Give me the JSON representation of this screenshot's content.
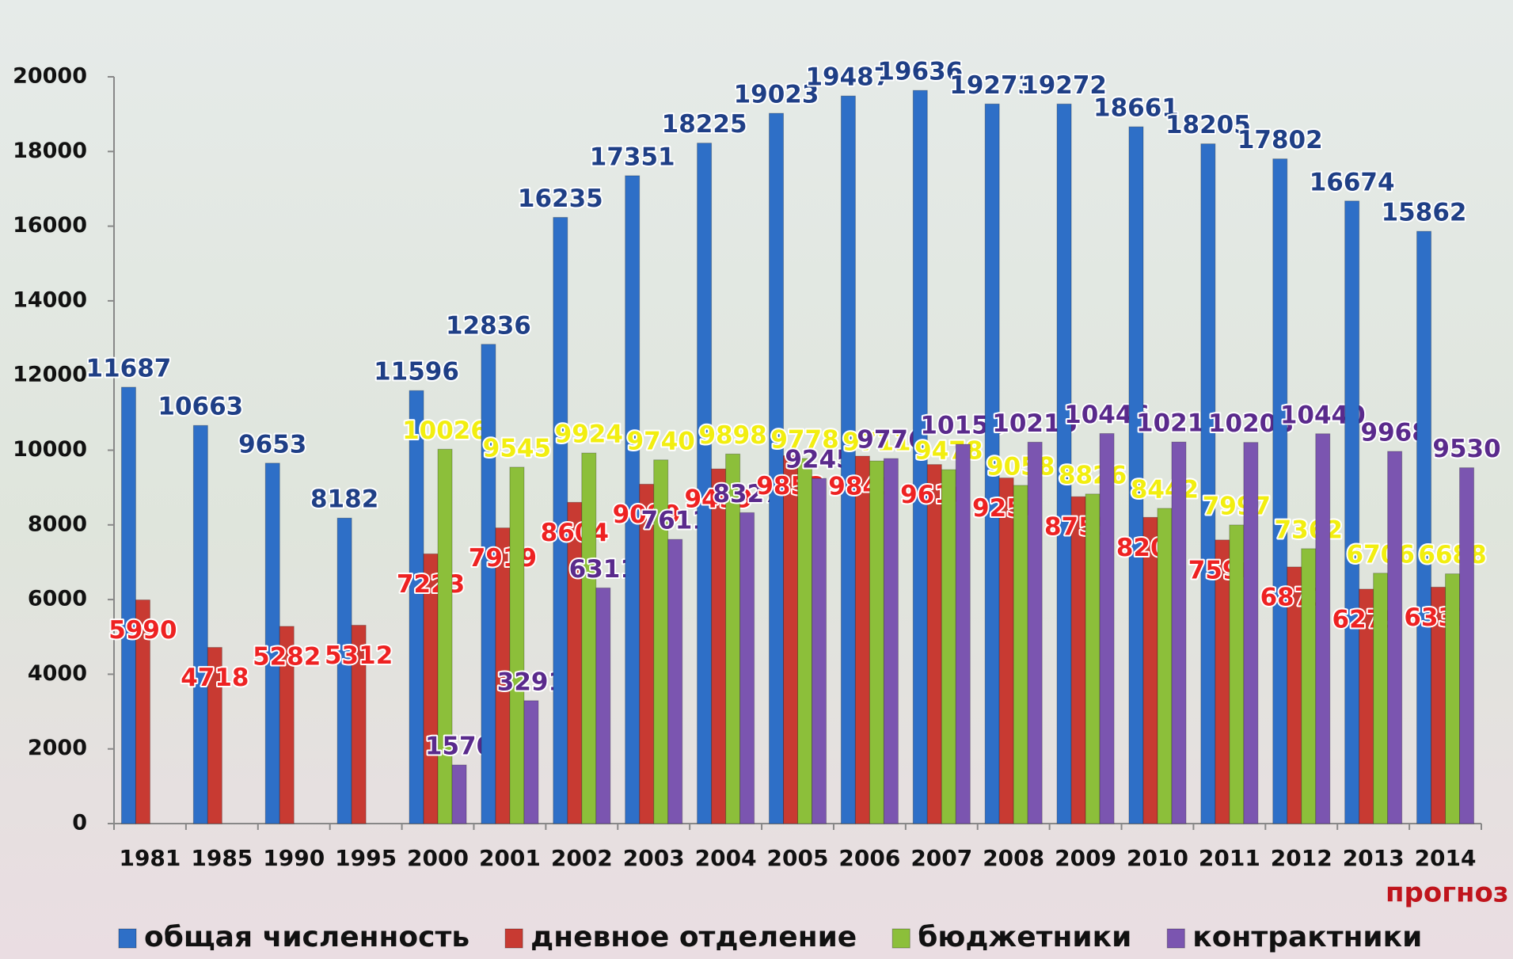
{
  "chart_data": {
    "type": "bar",
    "categories": [
      "1981",
      "1985",
      "1990",
      "1995",
      "2000",
      "2001",
      "2002",
      "2003",
      "2004",
      "2005",
      "2006",
      "2007",
      "2008",
      "2009",
      "2010",
      "2011",
      "2012",
      "2013",
      "2014"
    ],
    "series": [
      {
        "name": "общая численность",
        "color": "#2e6fc7",
        "label_color": "#1f3f86",
        "values": [
          11687,
          10663,
          9653,
          8182,
          11596,
          12836,
          16235,
          17351,
          18225,
          19023,
          19487,
          19636,
          19273,
          19272,
          18661,
          18205,
          17802,
          16674,
          15862
        ]
      },
      {
        "name": "дневное отделение",
        "color": "#c83a32",
        "label_color": "#ee2222",
        "values": [
          5990,
          4718,
          5282,
          5312,
          7223,
          7919,
          8604,
          9089,
          9499,
          9853,
          9841,
          9616,
          9256,
          8755,
          8202,
          7596,
          6873,
          6279,
          6332
        ]
      },
      {
        "name": "бюджетники",
        "color": "#8cbf3a",
        "label_color": "#f2ee10",
        "values": [
          null,
          null,
          null,
          null,
          10026,
          9545,
          9924,
          9740,
          9898,
          9778,
          9711,
          9478,
          9058,
          8826,
          8442,
          7997,
          7362,
          6706,
          6688
        ]
      },
      {
        "name": "контрактники",
        "color": "#7b55b0",
        "label_color": "#5a2a8c",
        "values": [
          null,
          null,
          null,
          null,
          1570,
          3291,
          6311,
          7611,
          8327,
          9245,
          9776,
          10158,
          10215,
          10446,
          10219,
          10208,
          10440,
          9968,
          9530
        ]
      }
    ],
    "ylim": [
      0,
      20000
    ],
    "yticks": [
      0,
      2000,
      4000,
      6000,
      8000,
      10000,
      12000,
      14000,
      16000,
      18000,
      20000
    ],
    "annotation": "прогноз",
    "legend": "bottom"
  }
}
